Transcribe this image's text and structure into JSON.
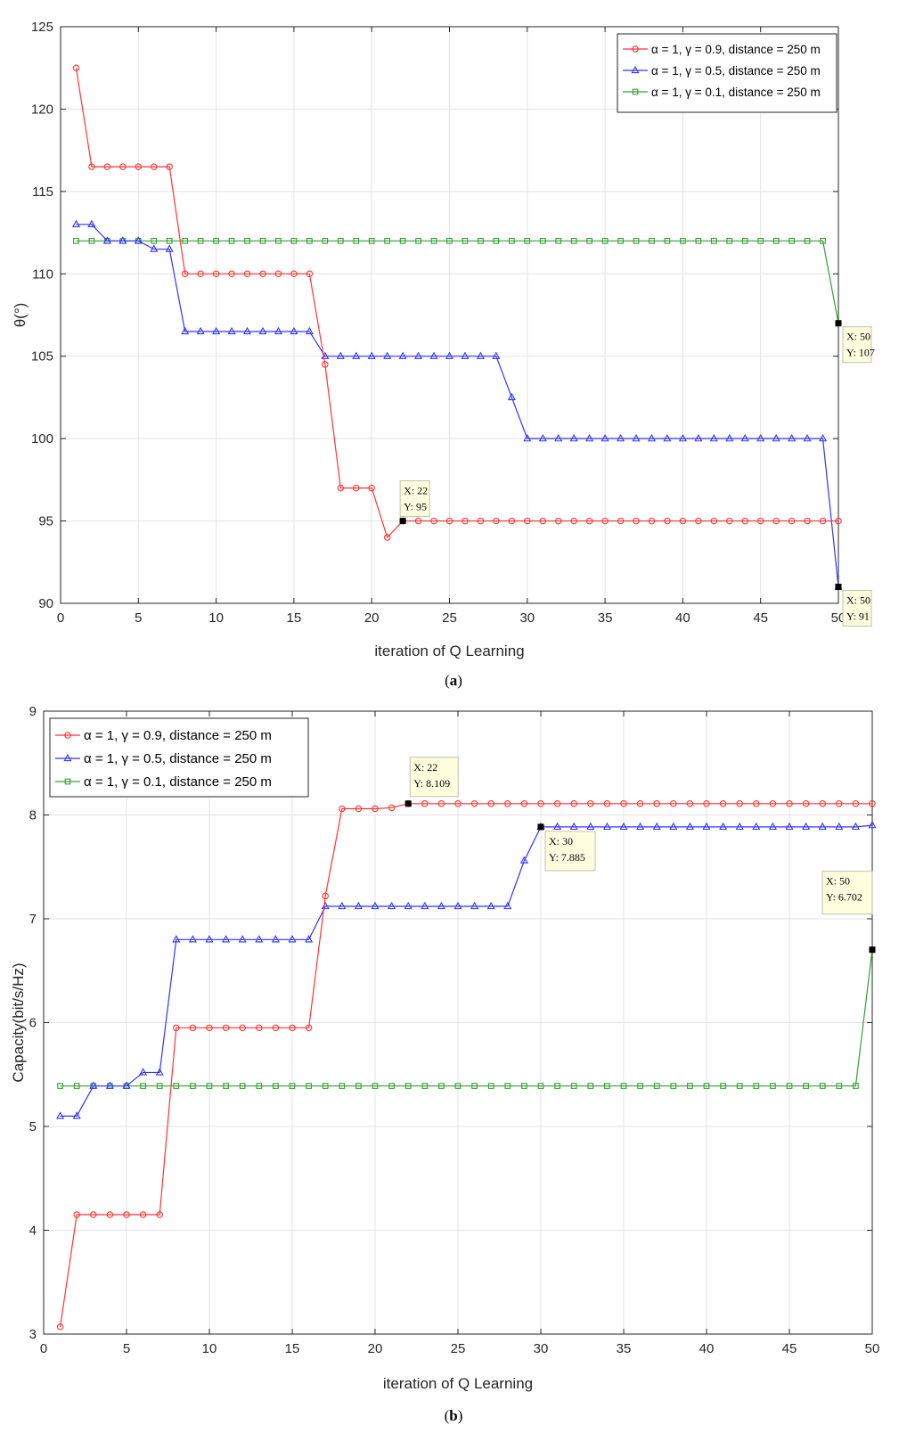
{
  "colors": {
    "red": "#ff3333",
    "blue": "#3333ff",
    "green": "#33a033",
    "grid": "#e3e3e3",
    "tip_bg": "#ffffe0"
  },
  "chart_data": [
    {
      "type": "line",
      "caption_letter": "a",
      "title": "",
      "xlabel": "iteration of Q Learning",
      "ylabel": "θ(°)",
      "xlim": [
        0,
        50
      ],
      "ylim": [
        90,
        125
      ],
      "xticks": [
        0,
        5,
        10,
        15,
        20,
        25,
        30,
        35,
        40,
        45,
        50
      ],
      "yticks": [
        90,
        95,
        100,
        105,
        110,
        115,
        120,
        125
      ],
      "grid": true,
      "legend_position": "top-right",
      "series": [
        {
          "name": "α = 1, γ = 0.9, distance = 250 m",
          "color": "red",
          "marker": "circle",
          "x": [
            1,
            2,
            3,
            4,
            5,
            6,
            7,
            8,
            9,
            10,
            11,
            12,
            13,
            14,
            15,
            16,
            17,
            18,
            19,
            20,
            21,
            22,
            23,
            24,
            25,
            26,
            27,
            28,
            29,
            30,
            31,
            32,
            33,
            34,
            35,
            36,
            37,
            38,
            39,
            40,
            41,
            42,
            43,
            44,
            45,
            46,
            47,
            48,
            49,
            50
          ],
          "values": [
            122.5,
            116.5,
            116.5,
            116.5,
            116.5,
            116.5,
            116.5,
            110,
            110,
            110,
            110,
            110,
            110,
            110,
            110,
            110,
            104.5,
            97,
            97,
            97,
            94,
            95,
            95,
            95,
            95,
            95,
            95,
            95,
            95,
            95,
            95,
            95,
            95,
            95,
            95,
            95,
            95,
            95,
            95,
            95,
            95,
            95,
            95,
            95,
            95,
            95,
            95,
            95,
            95,
            95
          ]
        },
        {
          "name": "α = 1, γ = 0.5, distance = 250 m",
          "color": "blue",
          "marker": "triangle",
          "x": [
            1,
            2,
            3,
            4,
            5,
            6,
            7,
            8,
            9,
            10,
            11,
            12,
            13,
            14,
            15,
            16,
            17,
            18,
            19,
            20,
            21,
            22,
            23,
            24,
            25,
            26,
            27,
            28,
            29,
            30,
            31,
            32,
            33,
            34,
            35,
            36,
            37,
            38,
            39,
            40,
            41,
            42,
            43,
            44,
            45,
            46,
            47,
            48,
            49,
            50
          ],
          "values": [
            113,
            113,
            112,
            112,
            112,
            111.5,
            111.5,
            106.5,
            106.5,
            106.5,
            106.5,
            106.5,
            106.5,
            106.5,
            106.5,
            106.5,
            105,
            105,
            105,
            105,
            105,
            105,
            105,
            105,
            105,
            105,
            105,
            105,
            102.5,
            100,
            100,
            100,
            100,
            100,
            100,
            100,
            100,
            100,
            100,
            100,
            100,
            100,
            100,
            100,
            100,
            100,
            100,
            100,
            100,
            91
          ]
        },
        {
          "name": "α = 1, γ = 0.1, distance = 250 m",
          "color": "green",
          "marker": "square",
          "x": [
            1,
            2,
            3,
            4,
            5,
            6,
            7,
            8,
            9,
            10,
            11,
            12,
            13,
            14,
            15,
            16,
            17,
            18,
            19,
            20,
            21,
            22,
            23,
            24,
            25,
            26,
            27,
            28,
            29,
            30,
            31,
            32,
            33,
            34,
            35,
            36,
            37,
            38,
            39,
            40,
            41,
            42,
            43,
            44,
            45,
            46,
            47,
            48,
            49,
            50
          ],
          "values": [
            112,
            112,
            112,
            112,
            112,
            112,
            112,
            112,
            112,
            112,
            112,
            112,
            112,
            112,
            112,
            112,
            112,
            112,
            112,
            112,
            112,
            112,
            112,
            112,
            112,
            112,
            112,
            112,
            112,
            112,
            112,
            112,
            112,
            112,
            112,
            112,
            112,
            112,
            112,
            112,
            112,
            112,
            112,
            112,
            112,
            112,
            112,
            112,
            112,
            107
          ]
        }
      ],
      "annotations": [
        {
          "x": 22,
          "y": 95,
          "x_label": "X: 22",
          "y_label": "Y: 95",
          "anchor": "above"
        },
        {
          "x": 50,
          "y": 107,
          "x_label": "X: 50",
          "y_label": "Y: 107",
          "anchor": "below-right"
        },
        {
          "x": 50,
          "y": 91,
          "x_label": "X: 50",
          "y_label": "Y: 91",
          "anchor": "below-right"
        }
      ]
    },
    {
      "type": "line",
      "caption_letter": "b",
      "title": "",
      "xlabel": "iteration of Q Learning",
      "ylabel": "Capacity(bit/s/Hz)",
      "xlim": [
        0,
        50
      ],
      "ylim": [
        3,
        9
      ],
      "xticks": [
        0,
        5,
        10,
        15,
        20,
        25,
        30,
        35,
        40,
        45,
        50
      ],
      "yticks": [
        3,
        4,
        5,
        6,
        7,
        8,
        9
      ],
      "grid": true,
      "legend_position": "top-left",
      "series": [
        {
          "name": "α = 1, γ = 0.9, distance = 250 m",
          "color": "red",
          "marker": "circle",
          "x": [
            1,
            2,
            3,
            4,
            5,
            6,
            7,
            8,
            9,
            10,
            11,
            12,
            13,
            14,
            15,
            16,
            17,
            18,
            19,
            20,
            21,
            22,
            23,
            24,
            25,
            26,
            27,
            28,
            29,
            30,
            31,
            32,
            33,
            34,
            35,
            36,
            37,
            38,
            39,
            40,
            41,
            42,
            43,
            44,
            45,
            46,
            47,
            48,
            49,
            50
          ],
          "values": [
            3.07,
            4.15,
            4.15,
            4.15,
            4.15,
            4.15,
            4.15,
            5.95,
            5.95,
            5.95,
            5.95,
            5.95,
            5.95,
            5.95,
            5.95,
            5.95,
            7.22,
            8.06,
            8.06,
            8.06,
            8.07,
            8.109,
            8.109,
            8.109,
            8.109,
            8.109,
            8.109,
            8.109,
            8.109,
            8.109,
            8.109,
            8.109,
            8.109,
            8.109,
            8.109,
            8.109,
            8.109,
            8.109,
            8.109,
            8.109,
            8.109,
            8.109,
            8.109,
            8.109,
            8.109,
            8.109,
            8.109,
            8.109,
            8.109,
            8.109
          ]
        },
        {
          "name": "α = 1, γ = 0.5, distance = 250 m",
          "color": "blue",
          "marker": "triangle",
          "x": [
            1,
            2,
            3,
            4,
            5,
            6,
            7,
            8,
            9,
            10,
            11,
            12,
            13,
            14,
            15,
            16,
            17,
            18,
            19,
            20,
            21,
            22,
            23,
            24,
            25,
            26,
            27,
            28,
            29,
            30,
            31,
            32,
            33,
            34,
            35,
            36,
            37,
            38,
            39,
            40,
            41,
            42,
            43,
            44,
            45,
            46,
            47,
            48,
            49,
            50
          ],
          "values": [
            5.1,
            5.1,
            5.39,
            5.39,
            5.39,
            5.52,
            5.52,
            6.8,
            6.8,
            6.8,
            6.8,
            6.8,
            6.8,
            6.8,
            6.8,
            6.8,
            7.12,
            7.12,
            7.12,
            7.12,
            7.12,
            7.12,
            7.12,
            7.12,
            7.12,
            7.12,
            7.12,
            7.12,
            7.56,
            7.885,
            7.885,
            7.885,
            7.885,
            7.885,
            7.885,
            7.885,
            7.885,
            7.885,
            7.885,
            7.885,
            7.885,
            7.885,
            7.885,
            7.885,
            7.885,
            7.885,
            7.885,
            7.885,
            7.885,
            7.9
          ]
        },
        {
          "name": "α = 1, γ = 0.1, distance = 250 m",
          "color": "green",
          "marker": "square",
          "x": [
            1,
            2,
            3,
            4,
            5,
            6,
            7,
            8,
            9,
            10,
            11,
            12,
            13,
            14,
            15,
            16,
            17,
            18,
            19,
            20,
            21,
            22,
            23,
            24,
            25,
            26,
            27,
            28,
            29,
            30,
            31,
            32,
            33,
            34,
            35,
            36,
            37,
            38,
            39,
            40,
            41,
            42,
            43,
            44,
            45,
            46,
            47,
            48,
            49,
            50
          ],
          "values": [
            5.39,
            5.39,
            5.39,
            5.39,
            5.39,
            5.39,
            5.39,
            5.39,
            5.39,
            5.39,
            5.39,
            5.39,
            5.39,
            5.39,
            5.39,
            5.39,
            5.39,
            5.39,
            5.39,
            5.39,
            5.39,
            5.39,
            5.39,
            5.39,
            5.39,
            5.39,
            5.39,
            5.39,
            5.39,
            5.39,
            5.39,
            5.39,
            5.39,
            5.39,
            5.39,
            5.39,
            5.39,
            5.39,
            5.39,
            5.39,
            5.39,
            5.39,
            5.39,
            5.39,
            5.39,
            5.39,
            5.39,
            5.39,
            5.39,
            6.702
          ]
        }
      ],
      "annotations": [
        {
          "x": 22,
          "y": 8.109,
          "x_label": "X: 22",
          "y_label": "Y: 8.109",
          "anchor": "above"
        },
        {
          "x": 30,
          "y": 7.885,
          "x_label": "X: 30",
          "y_label": "Y: 7.885",
          "anchor": "below-right"
        },
        {
          "x": 50,
          "y": 6.702,
          "x_label": "X: 50",
          "y_label": "Y: 6.702",
          "anchor": "above-left"
        }
      ]
    }
  ]
}
